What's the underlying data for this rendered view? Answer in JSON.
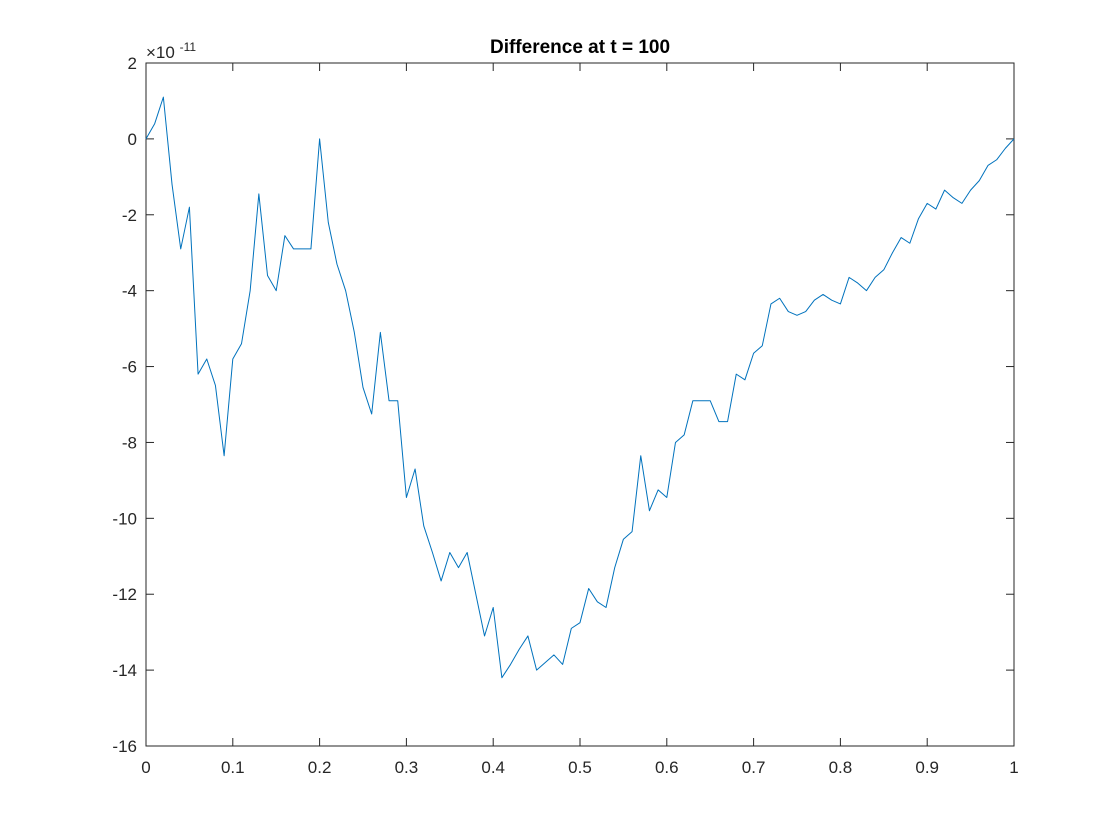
{
  "chart_data": {
    "type": "line",
    "title": "Difference at t = 100",
    "xlabel": "",
    "ylabel": "",
    "xlim": [
      0,
      1
    ],
    "ylim": [
      -16,
      2
    ],
    "y_exponent": {
      "base_text": "×10",
      "power": "-11"
    },
    "x_ticks": [
      0,
      0.1,
      0.2,
      0.3,
      0.4,
      0.5,
      0.6,
      0.7,
      0.8,
      0.9,
      1
    ],
    "x_tick_labels": [
      "0",
      "0.1",
      "0.2",
      "0.3",
      "0.4",
      "0.5",
      "0.6",
      "0.7",
      "0.8",
      "0.9",
      "1"
    ],
    "y_ticks": [
      -16,
      -14,
      -12,
      -10,
      -8,
      -6,
      -4,
      -2,
      0,
      2
    ],
    "y_tick_labels": [
      "-16",
      "-14",
      "-12",
      "-10",
      "-8",
      "-6",
      "-4",
      "-2",
      "0",
      "2"
    ],
    "grid": false,
    "series": [
      {
        "color": "#0072bd",
        "x": [
          0,
          0.01,
          0.02,
          0.03,
          0.04,
          0.05,
          0.06,
          0.07,
          0.08,
          0.09,
          0.1,
          0.11,
          0.12,
          0.13,
          0.14,
          0.15,
          0.16,
          0.17,
          0.18,
          0.19,
          0.2,
          0.21,
          0.22,
          0.23,
          0.24,
          0.25,
          0.26,
          0.27,
          0.28,
          0.29,
          0.3,
          0.31,
          0.32,
          0.33,
          0.34,
          0.35,
          0.36,
          0.37,
          0.38,
          0.39,
          0.4,
          0.41,
          0.42,
          0.43,
          0.44,
          0.45,
          0.46,
          0.47,
          0.48,
          0.49,
          0.5,
          0.51,
          0.52,
          0.53,
          0.54,
          0.55,
          0.56,
          0.57,
          0.58,
          0.59,
          0.6,
          0.61,
          0.62,
          0.63,
          0.64,
          0.65,
          0.66,
          0.67,
          0.68,
          0.69,
          0.7,
          0.71,
          0.72,
          0.73,
          0.74,
          0.75,
          0.76,
          0.77,
          0.78,
          0.79,
          0.8,
          0.81,
          0.82,
          0.83,
          0.84,
          0.85,
          0.86,
          0.87,
          0.88,
          0.89,
          0.9,
          0.91,
          0.92,
          0.93,
          0.94,
          0.95,
          0.96,
          0.97,
          0.98,
          0.99,
          1
        ],
        "y": [
          0,
          0.4,
          1.1,
          -1.2,
          -2.9,
          -1.8,
          -6.2,
          -5.8,
          -6.5,
          -8.35,
          -5.8,
          -5.4,
          -4.0,
          -1.45,
          -3.6,
          -4.0,
          -2.55,
          -2.9,
          -2.9,
          -2.9,
          0,
          -2.2,
          -3.3,
          -4.0,
          -5.1,
          -6.55,
          -7.25,
          -5.1,
          -6.9,
          -6.9,
          -9.45,
          -8.7,
          -10.2,
          -10.9,
          -11.65,
          -10.9,
          -11.3,
          -10.9,
          -12.0,
          -13.1,
          -12.35,
          -14.2,
          -13.85,
          -13.45,
          -13.1,
          -14.0,
          -13.8,
          -13.6,
          -13.85,
          -12.9,
          -12.75,
          -11.85,
          -12.2,
          -12.35,
          -11.3,
          -10.55,
          -10.35,
          -8.35,
          -9.8,
          -9.25,
          -9.45,
          -8.0,
          -7.8,
          -6.9,
          -6.9,
          -6.9,
          -7.45,
          -7.45,
          -6.2,
          -6.35,
          -5.65,
          -5.45,
          -4.35,
          -4.2,
          -4.55,
          -4.65,
          -4.55,
          -4.25,
          -4.1,
          -4.25,
          -4.35,
          -3.65,
          -3.8,
          -4.0,
          -3.65,
          -3.45,
          -3.0,
          -2.6,
          -2.75,
          -2.1,
          -1.7,
          -1.85,
          -1.35,
          -1.55,
          -1.7,
          -1.35,
          -1.1,
          -0.7,
          -0.55,
          -0.25,
          0
        ]
      }
    ]
  }
}
